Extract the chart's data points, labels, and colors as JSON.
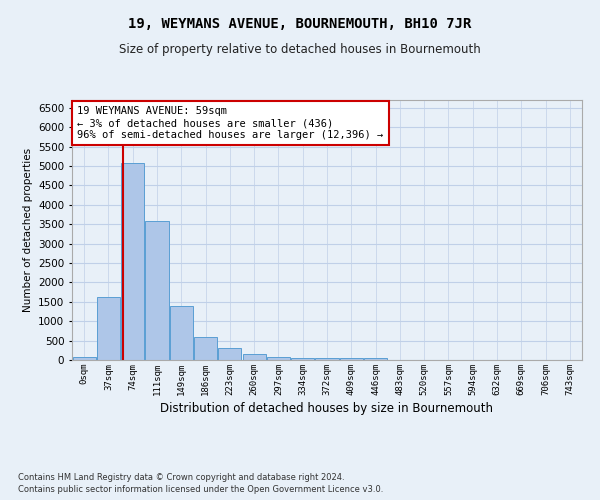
{
  "title": "19, WEYMANS AVENUE, BOURNEMOUTH, BH10 7JR",
  "subtitle": "Size of property relative to detached houses in Bournemouth",
  "xlabel": "Distribution of detached houses by size in Bournemouth",
  "ylabel": "Number of detached properties",
  "footer_line1": "Contains HM Land Registry data © Crown copyright and database right 2024.",
  "footer_line2": "Contains public sector information licensed under the Open Government Licence v3.0.",
  "categories": [
    "0sqm",
    "37sqm",
    "74sqm",
    "111sqm",
    "149sqm",
    "186sqm",
    "223sqm",
    "260sqm",
    "297sqm",
    "334sqm",
    "372sqm",
    "409sqm",
    "446sqm",
    "483sqm",
    "520sqm",
    "557sqm",
    "594sqm",
    "632sqm",
    "669sqm",
    "706sqm",
    "743sqm"
  ],
  "bar_values": [
    70,
    1620,
    5080,
    3590,
    1400,
    600,
    300,
    150,
    90,
    60,
    50,
    60,
    60,
    0,
    0,
    0,
    0,
    0,
    0,
    0,
    0
  ],
  "bar_color": "#aec6e8",
  "bar_edge_color": "#5a9fd4",
  "grid_color": "#c0d0e8",
  "background_color": "#e8f0f8",
  "annotation_text": "19 WEYMANS AVENUE: 59sqm\n← 3% of detached houses are smaller (436)\n96% of semi-detached houses are larger (12,396) →",
  "annotation_box_color": "#ffffff",
  "annotation_box_edge": "#cc0000",
  "property_line_x": 1.6,
  "ylim": [
    0,
    6700
  ],
  "yticks": [
    0,
    500,
    1000,
    1500,
    2000,
    2500,
    3000,
    3500,
    4000,
    4500,
    5000,
    5500,
    6000,
    6500
  ]
}
